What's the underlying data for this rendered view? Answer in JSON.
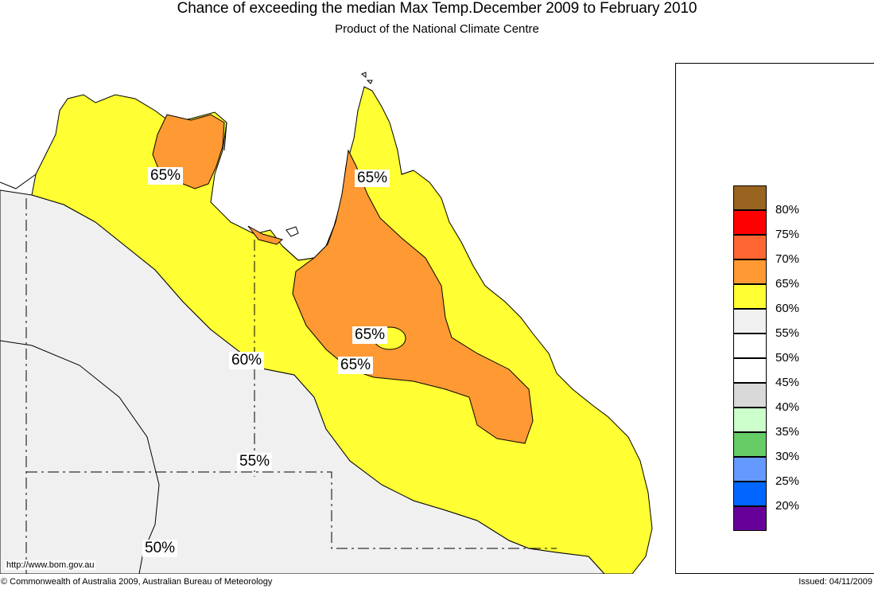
{
  "title": "Chance of exceeding the median Max Temp.December 2009 to February 2010",
  "subtitle": "Product of the National Climate Centre",
  "legend": [
    {
      "label": "80%",
      "color": "#996320"
    },
    {
      "label": "75%",
      "color": "#ff0000"
    },
    {
      "label": "70%",
      "color": "#ff6633"
    },
    {
      "label": "65%",
      "color": "#ff9933"
    },
    {
      "label": "60%",
      "color": "#ffff33"
    },
    {
      "label": "55%",
      "color": "#f0f0f0"
    },
    {
      "label": "50%",
      "color": "#ffffff"
    },
    {
      "label": "45%",
      "color": "#ffffff"
    },
    {
      "label": "40%",
      "color": "#d9d9d9"
    },
    {
      "label": "35%",
      "color": "#ccffcc"
    },
    {
      "label": "30%",
      "color": "#66cc66"
    },
    {
      "label": "25%",
      "color": "#6699ff"
    },
    {
      "label": "20%",
      "color": "#0066ff"
    },
    {
      "label": "",
      "color": "#660099"
    }
  ],
  "contour_labels": [
    "65%",
    "65%",
    "65%",
    "65%",
    "60%",
    "55%",
    "50%"
  ],
  "url": "http://www.bom.gov.au",
  "copyright": "© Commonwealth of Australia 2009, Australian Bureau of Meteorology",
  "issued": "Issued: 04/11/2009"
}
